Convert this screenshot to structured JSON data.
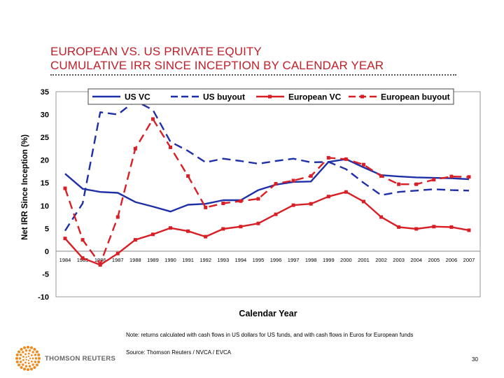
{
  "header": {
    "title_line1": "EUROPEAN VS. US PRIVATE EQUITY",
    "title_line2": "CUMULATIVE IRR SINCE INCEPTION BY CALENDAR YEAR"
  },
  "chart_data": {
    "type": "line",
    "title": "",
    "xlabel": "Calendar Year",
    "ylabel": "Net IRR Since Inception (%)",
    "ylim": [
      -10,
      35
    ],
    "yticks": [
      -10,
      -5,
      0,
      5,
      10,
      15,
      20,
      25,
      30,
      35
    ],
    "grid": false,
    "legend_position": "top",
    "categories": [
      "1984",
      "1985",
      "1986",
      "1987",
      "1988",
      "1989",
      "1990",
      "1991",
      "1992",
      "1993",
      "1994",
      "1995",
      "1996",
      "1997",
      "1998",
      "1999",
      "2000",
      "2001",
      "2002",
      "2003",
      "2004",
      "2005",
      "2006",
      "2007"
    ],
    "series": [
      {
        "name": "US VC",
        "color": "#1f2fa8",
        "style": "solid",
        "marker": false,
        "values": [
          17,
          13.7,
          13,
          12.8,
          10.8,
          9.8,
          8.7,
          10.2,
          10.4,
          11.2,
          11.2,
          13.4,
          14.6,
          15.2,
          15.3,
          19.6,
          20.2,
          18.4,
          16.7,
          16.4,
          16.2,
          16.1,
          16,
          15.8
        ]
      },
      {
        "name": "US buyout",
        "color": "#1f2fa8",
        "style": "dashed",
        "marker": false,
        "values": [
          4.5,
          10.5,
          30.5,
          30,
          33,
          31,
          24,
          22,
          19.5,
          20.3,
          19.8,
          19.2,
          19.8,
          20.3,
          19.5,
          19.6,
          18,
          15,
          12.3,
          13,
          13.3,
          13.6,
          13.4,
          13.3
        ]
      },
      {
        "name": "European VC",
        "color": "#d91f26",
        "style": "solid",
        "marker": true,
        "values": [
          2.8,
          -1.5,
          -3,
          -0.5,
          2.5,
          3.7,
          5.1,
          4.4,
          3.2,
          4.9,
          5.4,
          6.1,
          8.1,
          10.1,
          10.4,
          12,
          13,
          10.9,
          7.5,
          5.3,
          4.9,
          5.4,
          5.3,
          4.6
        ]
      },
      {
        "name": "European buyout",
        "color": "#d91f26",
        "style": "dashed",
        "marker": true,
        "values": [
          13.8,
          2.5,
          -2.8,
          7.5,
          22.5,
          29,
          22.8,
          16.5,
          9.6,
          10.5,
          11,
          11.5,
          14.8,
          15.5,
          16.5,
          20.5,
          20.2,
          19,
          16.5,
          14.7,
          14.7,
          15.7,
          16.4,
          16.3
        ]
      }
    ]
  },
  "footer": {
    "note": "Note: returns calculated with cash flows in US dollars for US funds, and with cash flows in Euros for European funds",
    "source": "Source: Thomson Reuters / NVCA / EVCA",
    "page_number": "30",
    "logo_text": "THOMSON REUTERS",
    "logo_icon": "thomson-reuters-dot-ring-icon"
  }
}
